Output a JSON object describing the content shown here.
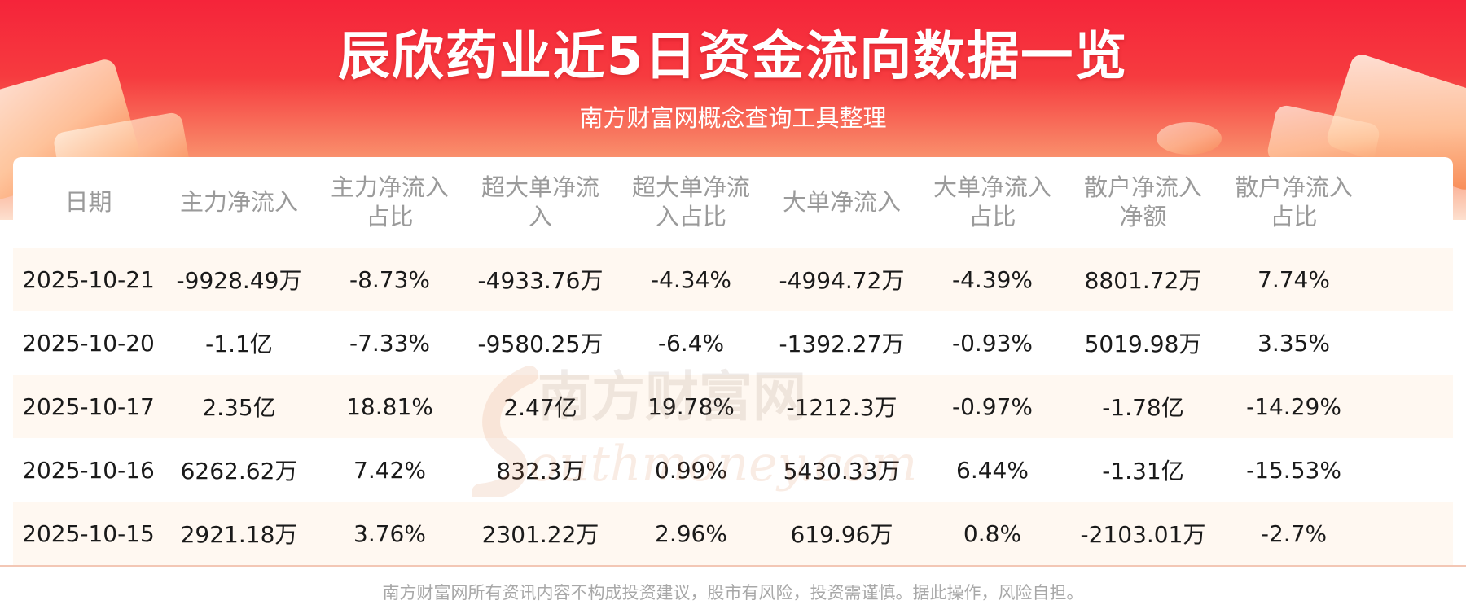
{
  "header": {
    "title": "辰欣药业近5日资金流向数据一览",
    "subtitle": "南方财富网概念查询工具整理"
  },
  "table": {
    "columns": [
      "日期",
      "主力净流入",
      "主力净流入占比",
      "超大单净流入",
      "超大单净流入占比",
      "大单净流入",
      "大单净流入占比",
      "散户净流入净额",
      "散户净流入占比"
    ],
    "rows": [
      [
        "2025-10-21",
        "-9928.49万",
        "-8.73%",
        "-4933.76万",
        "-4.34%",
        "-4994.72万",
        "-4.39%",
        "8801.72万",
        "7.74%"
      ],
      [
        "2025-10-20",
        "-1.1亿",
        "-7.33%",
        "-9580.25万",
        "-6.4%",
        "-1392.27万",
        "-0.93%",
        "5019.98万",
        "3.35%"
      ],
      [
        "2025-10-17",
        "2.35亿",
        "18.81%",
        "2.47亿",
        "19.78%",
        "-1212.3万",
        "-0.97%",
        "-1.78亿",
        "-14.29%"
      ],
      [
        "2025-10-16",
        "6262.62万",
        "7.42%",
        "832.3万",
        "0.99%",
        "5430.33万",
        "6.44%",
        "-1.31亿",
        "-15.53%"
      ],
      [
        "2025-10-15",
        "2921.18万",
        "3.76%",
        "2301.22万",
        "2.96%",
        "619.96万",
        "0.8%",
        "-2103.01万",
        "-2.7%"
      ]
    ]
  },
  "watermark": {
    "brand_cn": "南方财富网",
    "brand_en": "outhmoney.com"
  },
  "footer": {
    "disclaimer": "南方财富网所有资讯内容不构成投资建议，股市有风险，投资需谨慎。据此操作，风险自担。"
  },
  "colors": {
    "header_red": "#f5243a",
    "row_stripe": "#fff8f1",
    "header_text": "#9a9a9a",
    "cell_text": "#1a1a1a"
  }
}
